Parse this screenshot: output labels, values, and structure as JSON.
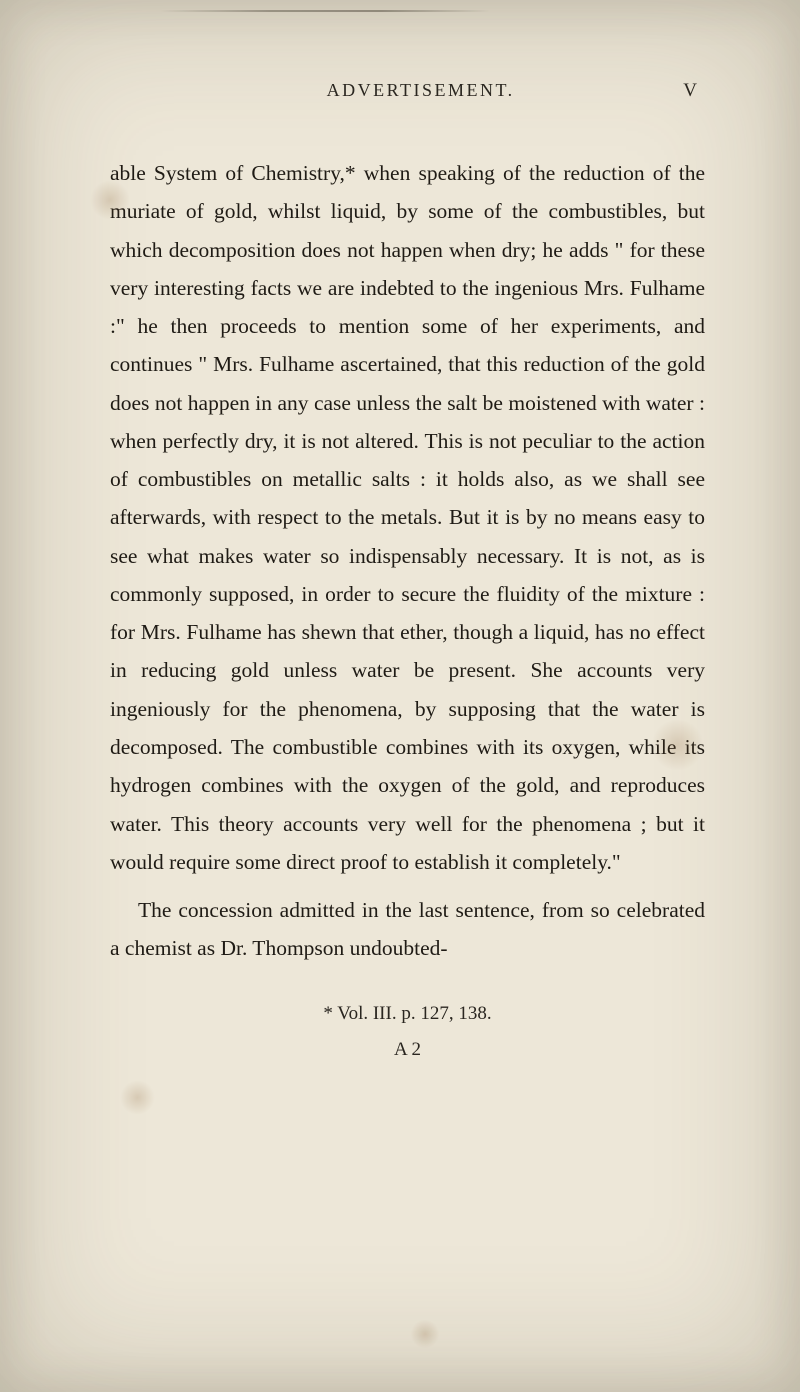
{
  "page": {
    "header_title": "ADVERTISEMENT.",
    "page_number": "V",
    "paragraph1": "able System of Chemistry,* when speaking of the reduction of the muriate of gold, whilst liquid, by some of the combustibles, but which decomposition does not happen when dry; he adds \" for these very interesting facts we are indebted to the ingenious Mrs. Fulhame :\" he then proceeds to mention some of her experiments, and continues \" Mrs. Fulhame as­certained, that this reduction of the gold does not happen in any case unless the salt be moistened with water : when perfectly dry, it is not altered. This is not peculiar to the action of combustibles on metallic salts : it holds also, as we shall see afterwards, with respect to the metals. But it is by no means easy to see what makes water so indispensably necessary. It is not, as is commonly supposed, in order to secure the fluidity of the mixture : for Mrs. Fulhame has shewn that ether, though a liquid, has no effect in reducing gold unless water be present. She accounts very ingeniously for the phenomena, by supposing that the water is decomposed. The combustible combines with its oxygen, while its hydrogen com­bines with the oxygen of the gold, and reproduces water. This theory accounts very well for the phe­nomena ; but it would require some direct proof to establish it completely.\"",
    "paragraph2": "The concession admitted in the last sentence, from so celebrated a chemist as Dr. Thompson undoubted-",
    "footnote_citation": "* Vol. III. p. 127, 138.",
    "footnote_sig": "A 2"
  },
  "style": {
    "background_color": "#ede7d8",
    "text_color": "#1f1b15",
    "body_fontsize": 21.5,
    "header_fontsize": 18,
    "line_height": 1.78
  }
}
